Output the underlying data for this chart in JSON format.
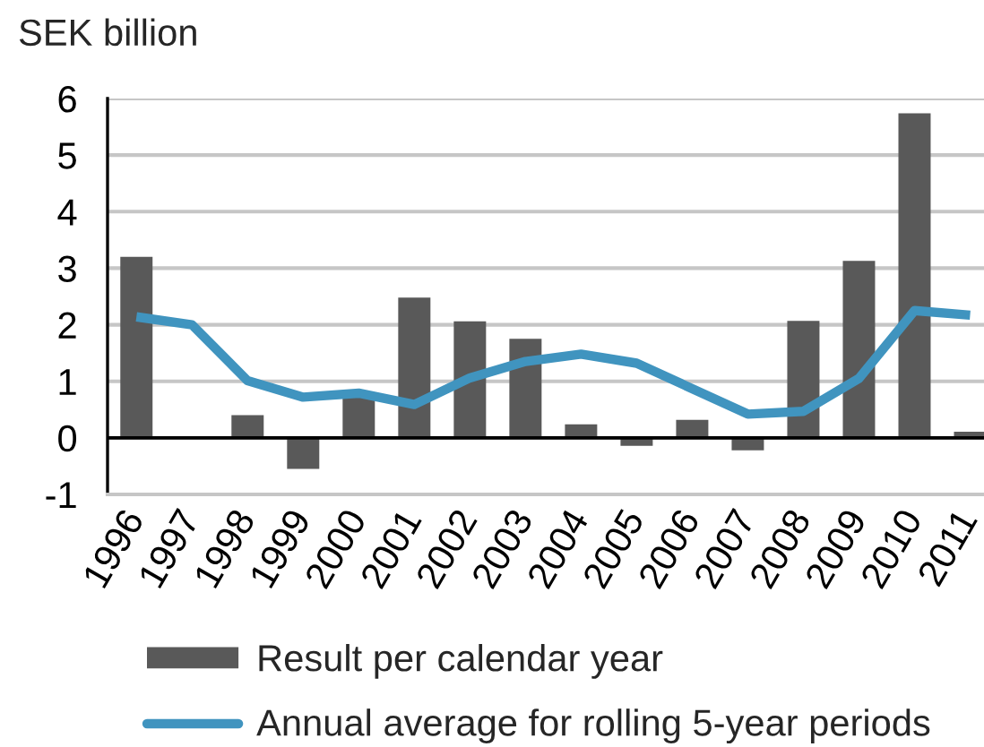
{
  "chart_data": {
    "type": "bar",
    "ylabel": "SEK billion",
    "categories": [
      "1996",
      "1997",
      "1998",
      "1999",
      "2000",
      "2001",
      "2002",
      "2003",
      "2004",
      "2005",
      "2006",
      "2007",
      "2008",
      "2009",
      "2010",
      "2011"
    ],
    "series": [
      {
        "name": "Result per calendar year",
        "color": "#595959",
        "values": [
          3.2,
          null,
          0.4,
          -0.55,
          0.72,
          2.48,
          2.06,
          1.75,
          0.24,
          -0.14,
          0.32,
          -0.22,
          2.07,
          3.13,
          5.74,
          0.11
        ]
      },
      {
        "name": "Annual average for rolling 5-year periods",
        "type": "line",
        "color": "#4094bf",
        "values": [
          2.14,
          2.0,
          1.01,
          0.72,
          0.79,
          0.59,
          1.06,
          1.35,
          1.48,
          1.32,
          0.87,
          0.42,
          0.47,
          1.05,
          2.25,
          2.17
        ]
      }
    ],
    "ylim": [
      -1,
      6
    ],
    "yticks": [
      -1,
      0,
      1,
      2,
      3,
      4,
      5,
      6
    ],
    "grid": "y",
    "legend": "bottom"
  }
}
